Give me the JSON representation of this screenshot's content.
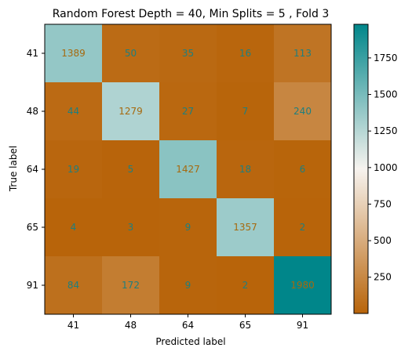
{
  "chart_data": {
    "type": "heatmap",
    "title": "Random Forest Depth = 40, Min Splits = 5 , Fold 3",
    "xlabel": "Predicted label",
    "ylabel": "True label",
    "x_categories": [
      "41",
      "48",
      "64",
      "65",
      "91"
    ],
    "y_categories": [
      "41",
      "48",
      "64",
      "65",
      "91"
    ],
    "values": [
      [
        1389,
        50,
        35,
        16,
        113
      ],
      [
        44,
        1279,
        27,
        7,
        240
      ],
      [
        19,
        5,
        1427,
        18,
        6
      ],
      [
        4,
        3,
        9,
        1357,
        2
      ],
      [
        84,
        172,
        9,
        2,
        1980
      ]
    ],
    "colorbar": {
      "ticks": [
        250,
        500,
        750,
        1000,
        1250,
        1500,
        1750
      ],
      "range": [
        2,
        1980
      ]
    },
    "colormap": {
      "low": "#b8640a",
      "mid": "#f7f3ef",
      "high": "#00868a"
    },
    "text_colors": {
      "on_low": "#1e7f7f",
      "on_high": "#a6690e"
    }
  }
}
